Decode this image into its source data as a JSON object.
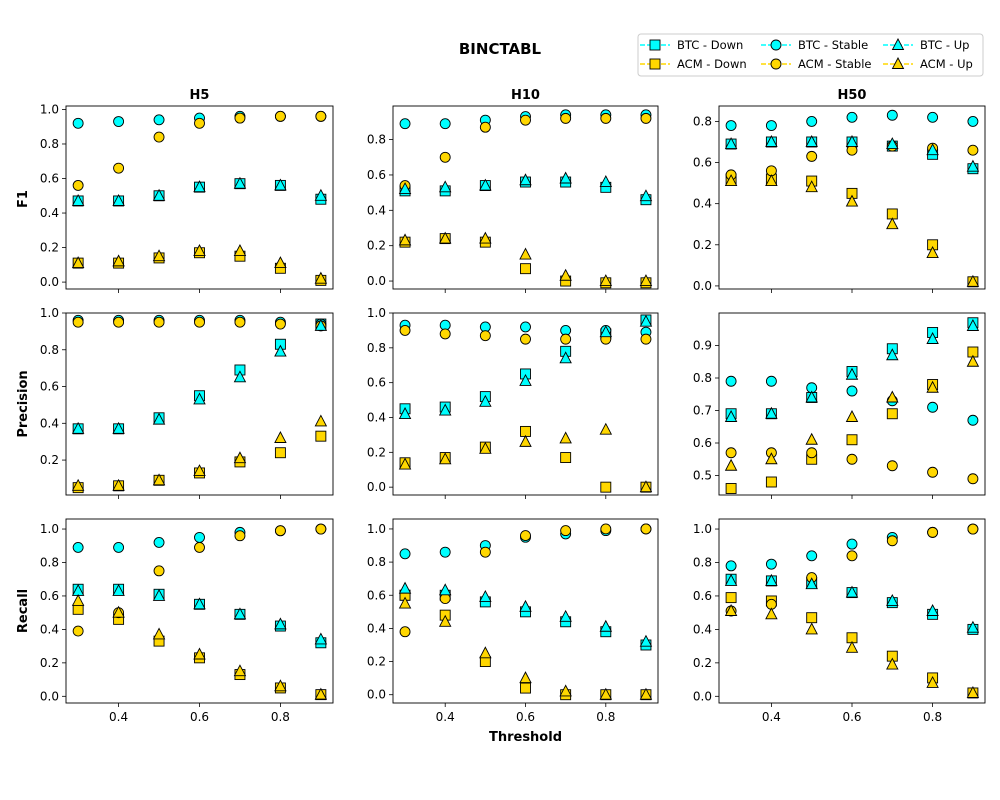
{
  "title": "BINCTABL",
  "xlabel": "Threshold",
  "row_labels": [
    "F1",
    "Precision",
    "Recall"
  ],
  "col_titles": [
    "H5",
    "H10",
    "H50"
  ],
  "legend": {
    "placement": "top-right",
    "entries": [
      {
        "name": "BTC - Down",
        "color": "#00ffff",
        "marker": "square"
      },
      {
        "name": "ACM - Down",
        "color": "#ffd700",
        "marker": "square"
      },
      {
        "name": "BTC - Stable",
        "color": "#00ffff",
        "marker": "circle"
      },
      {
        "name": "ACM - Stable",
        "color": "#ffd700",
        "marker": "circle"
      },
      {
        "name": "BTC - Up",
        "color": "#00ffff",
        "marker": "triangle"
      },
      {
        "name": "ACM - Up",
        "color": "#ffd700",
        "marker": "triangle"
      }
    ]
  },
  "chart_data": [
    {
      "type": "scatter",
      "metric": "F1",
      "horizon": "H5",
      "x": [
        0.3,
        0.4,
        0.5,
        0.6,
        0.7,
        0.8,
        0.9
      ],
      "xlim": [
        0.27,
        0.93
      ],
      "ylim": [
        -0.04,
        1.02
      ],
      "xticks": [],
      "yticks": [
        "0.0",
        "0.2",
        "0.4",
        "0.6",
        "0.8",
        "1.0"
      ],
      "series": [
        {
          "name": "BTC - Down",
          "values": [
            0.47,
            0.47,
            0.5,
            0.55,
            0.57,
            0.56,
            0.48
          ]
        },
        {
          "name": "ACM - Down",
          "values": [
            0.11,
            0.11,
            0.14,
            0.17,
            0.15,
            0.08,
            0.01
          ]
        },
        {
          "name": "BTC - Stable",
          "values": [
            0.92,
            0.93,
            0.94,
            0.95,
            0.96,
            0.96,
            0.96
          ]
        },
        {
          "name": "ACM - Stable",
          "values": [
            0.56,
            0.66,
            0.84,
            0.92,
            0.95,
            0.96,
            0.96
          ]
        },
        {
          "name": "BTC - Up",
          "values": [
            0.47,
            0.47,
            0.5,
            0.55,
            0.57,
            0.56,
            0.5
          ]
        },
        {
          "name": "ACM - Up",
          "values": [
            0.11,
            0.12,
            0.15,
            0.18,
            0.18,
            0.11,
            0.02
          ]
        }
      ]
    },
    {
      "type": "scatter",
      "metric": "F1",
      "horizon": "H10",
      "x": [
        0.3,
        0.4,
        0.5,
        0.6,
        0.7,
        0.8,
        0.9
      ],
      "xlim": [
        0.27,
        0.93
      ],
      "ylim": [
        -0.045,
        0.99
      ],
      "xticks": [],
      "yticks": [
        "0.0",
        "0.2",
        "0.4",
        "0.6",
        "0.8"
      ],
      "series": [
        {
          "name": "BTC - Down",
          "values": [
            0.51,
            0.51,
            0.54,
            0.56,
            0.56,
            0.53,
            0.46
          ]
        },
        {
          "name": "ACM - Down",
          "values": [
            0.22,
            0.24,
            0.22,
            0.07,
            0.0,
            -0.01,
            -0.01
          ]
        },
        {
          "name": "BTC - Stable",
          "values": [
            0.89,
            0.89,
            0.91,
            0.93,
            0.94,
            0.94,
            0.94
          ]
        },
        {
          "name": "ACM - Stable",
          "values": [
            0.54,
            0.7,
            0.87,
            0.91,
            0.92,
            0.92,
            0.92
          ]
        },
        {
          "name": "BTC - Up",
          "values": [
            0.52,
            0.53,
            0.54,
            0.57,
            0.58,
            0.56,
            0.48
          ]
        },
        {
          "name": "ACM - Up",
          "values": [
            0.23,
            0.24,
            0.24,
            0.15,
            0.03,
            0.0,
            0.0
          ]
        }
      ]
    },
    {
      "type": "scatter",
      "metric": "F1",
      "horizon": "H50",
      "x": [
        0.3,
        0.4,
        0.5,
        0.6,
        0.7,
        0.8,
        0.9
      ],
      "xlim": [
        0.27,
        0.93
      ],
      "ylim": [
        -0.015,
        0.875
      ],
      "xticks": [],
      "yticks": [
        "0.0",
        "0.2",
        "0.4",
        "0.6",
        "0.8"
      ],
      "series": [
        {
          "name": "BTC - Down",
          "values": [
            0.69,
            0.7,
            0.7,
            0.7,
            0.68,
            0.64,
            0.57
          ]
        },
        {
          "name": "ACM - Down",
          "values": [
            0.52,
            0.52,
            0.51,
            0.45,
            0.35,
            0.2,
            0.02
          ]
        },
        {
          "name": "BTC - Stable",
          "values": [
            0.78,
            0.78,
            0.8,
            0.82,
            0.83,
            0.82,
            0.8
          ]
        },
        {
          "name": "ACM - Stable",
          "values": [
            0.54,
            0.56,
            0.63,
            0.66,
            0.68,
            0.67,
            0.66
          ]
        },
        {
          "name": "BTC - Up",
          "values": [
            0.69,
            0.7,
            0.7,
            0.7,
            0.69,
            0.66,
            0.58
          ]
        },
        {
          "name": "ACM - Up",
          "values": [
            0.51,
            0.51,
            0.48,
            0.41,
            0.3,
            0.16,
            0.02
          ]
        }
      ]
    },
    {
      "type": "scatter",
      "metric": "Precision",
      "horizon": "H5",
      "x": [
        0.3,
        0.4,
        0.5,
        0.6,
        0.7,
        0.8,
        0.9
      ],
      "xlim": [
        0.27,
        0.93
      ],
      "ylim": [
        0.01,
        1.0
      ],
      "xticks": [],
      "yticks": [
        "0.2",
        "0.4",
        "0.6",
        "0.8",
        "1.0"
      ],
      "series": [
        {
          "name": "BTC - Down",
          "values": [
            0.37,
            0.37,
            0.43,
            0.55,
            0.69,
            0.83,
            0.94
          ]
        },
        {
          "name": "ACM - Down",
          "values": [
            0.05,
            0.06,
            0.09,
            0.13,
            0.19,
            0.24,
            0.33
          ]
        },
        {
          "name": "BTC - Stable",
          "values": [
            0.96,
            0.96,
            0.96,
            0.96,
            0.96,
            0.95,
            0.94
          ]
        },
        {
          "name": "ACM - Stable",
          "values": [
            0.95,
            0.95,
            0.95,
            0.95,
            0.95,
            0.94,
            0.93
          ]
        },
        {
          "name": "BTC - Up",
          "values": [
            0.37,
            0.37,
            0.42,
            0.53,
            0.65,
            0.79,
            0.93
          ]
        },
        {
          "name": "ACM - Up",
          "values": [
            0.06,
            0.06,
            0.09,
            0.14,
            0.21,
            0.32,
            0.41
          ]
        }
      ]
    },
    {
      "type": "scatter",
      "metric": "Precision",
      "horizon": "H10",
      "x": [
        0.3,
        0.4,
        0.5,
        0.6,
        0.7,
        0.8,
        0.9
      ],
      "xlim": [
        0.27,
        0.93
      ],
      "ylim": [
        -0.045,
        1.0
      ],
      "xticks": [],
      "yticks": [
        "0.0",
        "0.2",
        "0.4",
        "0.6",
        "0.8",
        "1.0"
      ],
      "series": [
        {
          "name": "BTC - Down",
          "values": [
            0.45,
            0.46,
            0.52,
            0.65,
            0.78,
            0.88,
            0.96
          ]
        },
        {
          "name": "ACM - Down",
          "values": [
            0.14,
            0.17,
            0.23,
            0.32,
            0.17,
            0.0,
            0.0
          ]
        },
        {
          "name": "BTC - Stable",
          "values": [
            0.93,
            0.93,
            0.92,
            0.92,
            0.9,
            0.9,
            0.89
          ]
        },
        {
          "name": "ACM - Stable",
          "values": [
            0.9,
            0.88,
            0.87,
            0.85,
            0.85,
            0.85,
            0.85
          ]
        },
        {
          "name": "BTC - Up",
          "values": [
            0.42,
            0.44,
            0.49,
            0.61,
            0.74,
            0.89,
            0.95
          ]
        },
        {
          "name": "ACM - Up",
          "values": [
            0.13,
            0.16,
            0.22,
            0.26,
            0.28,
            0.33,
            0.0
          ]
        }
      ]
    },
    {
      "type": "scatter",
      "metric": "Precision",
      "horizon": "H50",
      "x": [
        0.3,
        0.4,
        0.5,
        0.6,
        0.7,
        0.8,
        0.9
      ],
      "xlim": [
        0.27,
        0.93
      ],
      "ylim": [
        0.44,
        1.0
      ],
      "xticks": [],
      "yticks": [
        "0.5",
        "0.6",
        "0.7",
        "0.8",
        "0.9"
      ],
      "series": [
        {
          "name": "BTC - Down",
          "values": [
            0.69,
            0.69,
            0.74,
            0.82,
            0.89,
            0.94,
            0.97
          ]
        },
        {
          "name": "ACM - Down",
          "values": [
            0.46,
            0.48,
            0.55,
            0.61,
            0.69,
            0.78,
            0.88
          ]
        },
        {
          "name": "BTC - Stable",
          "values": [
            0.79,
            0.79,
            0.77,
            0.76,
            0.73,
            0.71,
            0.67
          ]
        },
        {
          "name": "ACM - Stable",
          "values": [
            0.57,
            0.57,
            0.57,
            0.55,
            0.53,
            0.51,
            0.49
          ]
        },
        {
          "name": "BTC - Up",
          "values": [
            0.68,
            0.69,
            0.74,
            0.81,
            0.87,
            0.92,
            0.96
          ]
        },
        {
          "name": "ACM - Up",
          "values": [
            0.53,
            0.55,
            0.61,
            0.68,
            0.74,
            0.77,
            0.85
          ]
        }
      ]
    },
    {
      "type": "scatter",
      "metric": "Recall",
      "horizon": "H5",
      "x": [
        0.3,
        0.4,
        0.5,
        0.6,
        0.7,
        0.8,
        0.9
      ],
      "xlim": [
        0.27,
        0.93
      ],
      "ylim": [
        -0.04,
        1.06
      ],
      "xticks": [
        "0.4",
        "0.6",
        "0.8"
      ],
      "yticks": [
        "0.0",
        "0.2",
        "0.4",
        "0.6",
        "0.8",
        "1.0"
      ],
      "series": [
        {
          "name": "BTC - Down",
          "values": [
            0.64,
            0.64,
            0.61,
            0.55,
            0.49,
            0.42,
            0.32
          ]
        },
        {
          "name": "ACM - Down",
          "values": [
            0.52,
            0.46,
            0.33,
            0.23,
            0.13,
            0.05,
            0.01
          ]
        },
        {
          "name": "BTC - Stable",
          "values": [
            0.89,
            0.89,
            0.92,
            0.95,
            0.98,
            0.99,
            1.0
          ]
        },
        {
          "name": "ACM - Stable",
          "values": [
            0.39,
            0.5,
            0.75,
            0.89,
            0.96,
            0.99,
            1.0
          ]
        },
        {
          "name": "BTC - Up",
          "values": [
            0.63,
            0.63,
            0.6,
            0.55,
            0.49,
            0.43,
            0.34
          ]
        },
        {
          "name": "ACM - Up",
          "values": [
            0.57,
            0.5,
            0.37,
            0.25,
            0.15,
            0.06,
            0.01
          ]
        }
      ]
    },
    {
      "type": "scatter",
      "metric": "Recall",
      "horizon": "H10",
      "x": [
        0.3,
        0.4,
        0.5,
        0.6,
        0.7,
        0.8,
        0.9
      ],
      "xlim": [
        0.27,
        0.93
      ],
      "ylim": [
        -0.05,
        1.06
      ],
      "xticks": [
        "0.4",
        "0.6",
        "0.8"
      ],
      "yticks": [
        "0.0",
        "0.2",
        "0.4",
        "0.6",
        "0.8",
        "1.0"
      ],
      "series": [
        {
          "name": "BTC - Down",
          "values": [
            0.6,
            0.6,
            0.56,
            0.5,
            0.44,
            0.38,
            0.3
          ]
        },
        {
          "name": "ACM - Down",
          "values": [
            0.6,
            0.48,
            0.2,
            0.04,
            0.0,
            0.0,
            0.0
          ]
        },
        {
          "name": "BTC - Stable",
          "values": [
            0.85,
            0.86,
            0.9,
            0.95,
            0.97,
            0.99,
            1.0
          ]
        },
        {
          "name": "ACM - Stable",
          "values": [
            0.38,
            0.58,
            0.86,
            0.96,
            0.99,
            1.0,
            1.0
          ]
        },
        {
          "name": "BTC - Up",
          "values": [
            0.64,
            0.63,
            0.59,
            0.53,
            0.47,
            0.41,
            0.32
          ]
        },
        {
          "name": "ACM - Up",
          "values": [
            0.55,
            0.44,
            0.25,
            0.1,
            0.02,
            0.0,
            0.0
          ]
        }
      ]
    },
    {
      "type": "scatter",
      "metric": "Recall",
      "horizon": "H50",
      "x": [
        0.3,
        0.4,
        0.5,
        0.6,
        0.7,
        0.8,
        0.9
      ],
      "xlim": [
        0.27,
        0.93
      ],
      "ylim": [
        -0.04,
        1.06
      ],
      "xticks": [
        "0.4",
        "0.6",
        "0.8"
      ],
      "yticks": [
        "0.0",
        "0.2",
        "0.4",
        "0.6",
        "0.8",
        "1.0"
      ],
      "series": [
        {
          "name": "BTC - Down",
          "values": [
            0.7,
            0.69,
            0.68,
            0.62,
            0.56,
            0.49,
            0.4
          ]
        },
        {
          "name": "ACM - Down",
          "values": [
            0.59,
            0.57,
            0.47,
            0.35,
            0.24,
            0.11,
            0.02
          ]
        },
        {
          "name": "BTC - Stable",
          "values": [
            0.78,
            0.79,
            0.84,
            0.91,
            0.95,
            0.98,
            1.0
          ]
        },
        {
          "name": "ACM - Stable",
          "values": [
            0.51,
            0.55,
            0.71,
            0.84,
            0.93,
            0.98,
            1.0
          ]
        },
        {
          "name": "BTC - Up",
          "values": [
            0.69,
            0.69,
            0.67,
            0.62,
            0.57,
            0.51,
            0.41
          ]
        },
        {
          "name": "ACM - Up",
          "values": [
            0.51,
            0.49,
            0.4,
            0.29,
            0.19,
            0.08,
            0.02
          ]
        }
      ]
    }
  ]
}
